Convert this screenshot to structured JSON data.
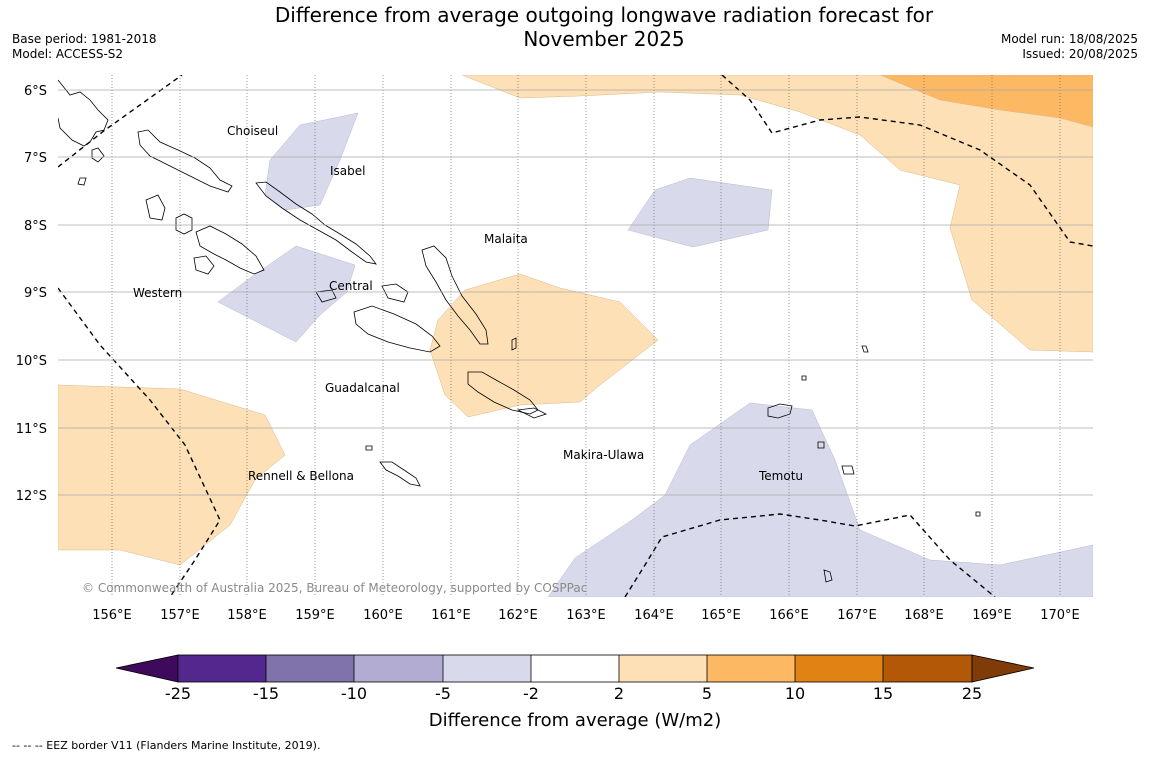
{
  "title": {
    "line1": "Difference from average outgoing longwave radiation forecast for",
    "line2": "November 2025"
  },
  "meta_left": {
    "base_period": "Base period: 1981-2018",
    "model": "Model: ACCESS-S2"
  },
  "meta_right": {
    "model_run": "Model run: 18/08/2025",
    "issued": "Issued: 20/08/2025"
  },
  "map": {
    "lat_labels": [
      "6°S",
      "7°S",
      "8°S",
      "9°S",
      "10°S",
      "11°S",
      "12°S"
    ],
    "lon_labels": [
      "156°E",
      "157°E",
      "158°E",
      "159°E",
      "160°E",
      "161°E",
      "162°E",
      "163°E",
      "164°E",
      "165°E",
      "166°E",
      "167°E",
      "168°E",
      "169°E",
      "170°E"
    ],
    "regions": [
      "Choiseul",
      "Isabel",
      "Malaita",
      "Western",
      "Central",
      "Guadalcanal",
      "Makira-Ulawa",
      "Rennell & Bellona",
      "Temotu"
    ],
    "copyright": "© Commonwealth of Australia 2025, Bureau of Meteorology, supported by COSPPac"
  },
  "colorbar": {
    "tick_labels": [
      "-25",
      "-15",
      "-10",
      "-5",
      "-2",
      "2",
      "5",
      "10",
      "15",
      "25"
    ],
    "colors": [
      "#3f0a5c",
      "#54278f",
      "#8073ac",
      "#b2abd2",
      "#d8daeb",
      "#ffffff",
      "#fee0b6",
      "#fdb863",
      "#e08214",
      "#b35806",
      "#7f3b08"
    ],
    "title": "Difference from average (W/m2)"
  },
  "footer": "--  --  -- EEZ border V11 (Flanders Marine Institute, 2019)."
}
